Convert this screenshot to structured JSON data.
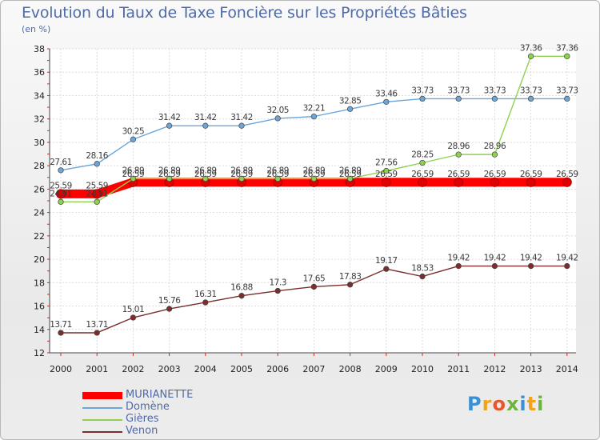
{
  "title": "Evolution du Taux de Taxe Foncière sur les Propriétés Bâties",
  "unit_label": "(en %)",
  "logo": {
    "text": "Proxiti",
    "colors": [
      "#3b8fd4",
      "#f2a31b",
      "#e8572b",
      "#6cb33f",
      "#3b8fd4",
      "#f2a31b",
      "#6cb33f"
    ]
  },
  "chart_data": {
    "type": "line",
    "x": [
      "2000",
      "2001",
      "2002",
      "2003",
      "2004",
      "2005",
      "2006",
      "2007",
      "2008",
      "2009",
      "2010",
      "2011",
      "2012",
      "2013",
      "2014"
    ],
    "ylim": [
      12,
      38
    ],
    "yticks": [
      12,
      14,
      16,
      18,
      20,
      22,
      24,
      26,
      28,
      30,
      32,
      34,
      36,
      38
    ],
    "grid": true,
    "legend_position": "bottom-left",
    "series": [
      {
        "name": "MURIANETTE",
        "color": "#ff0000",
        "values": [
          25.59,
          25.59,
          26.59,
          26.59,
          26.59,
          26.59,
          26.59,
          26.59,
          26.59,
          26.59,
          26.59,
          26.59,
          26.59,
          26.59,
          26.59
        ],
        "labels": [
          "25.59",
          "25.59",
          "26.59",
          "26.59",
          "26.59",
          "26.59",
          "26.59",
          "26.59",
          "26.59",
          "26.59",
          "26.59",
          "26.59",
          "26.59",
          "26.59",
          "26.59"
        ]
      },
      {
        "name": "Domène",
        "color": "#6ca6d8",
        "values": [
          27.61,
          28.16,
          30.25,
          31.42,
          31.42,
          31.42,
          32.05,
          32.21,
          32.85,
          33.46,
          33.73,
          33.73,
          33.73,
          33.73,
          33.73
        ],
        "labels": [
          "27.61",
          "28.16",
          "30.25",
          "31.42",
          "31.42",
          "31.42",
          "32.05",
          "32.21",
          "32.85",
          "33.46",
          "33.73",
          "33.73",
          "33.73",
          "33.73",
          "33.73"
        ]
      },
      {
        "name": "Gières",
        "color": "#8fd14f",
        "values": [
          24.91,
          24.91,
          26.89,
          26.89,
          26.89,
          26.89,
          26.89,
          26.89,
          26.89,
          27.56,
          28.25,
          28.96,
          28.96,
          37.36,
          37.36
        ],
        "labels": [
          "24.91",
          "24.91",
          "26.89",
          "26.89",
          "26.89",
          "26.89",
          "26.89",
          "26.89",
          "26.89",
          "27.56",
          "28.25",
          "28.96",
          "28.96",
          "37.36",
          "37.36"
        ]
      },
      {
        "name": "Venon",
        "color": "#7b2d2d",
        "values": [
          13.71,
          13.71,
          15.01,
          15.76,
          16.31,
          16.88,
          17.3,
          17.65,
          17.83,
          19.17,
          18.53,
          19.42,
          19.42,
          19.42,
          19.42
        ],
        "labels": [
          "13.71",
          "13.71",
          "15.01",
          "15.76",
          "16.31",
          "16.88",
          "17.3",
          "17.65",
          "17.83",
          "19.17",
          "18.53",
          "19.42",
          "19.42",
          "19.42",
          "19.42"
        ]
      }
    ]
  }
}
